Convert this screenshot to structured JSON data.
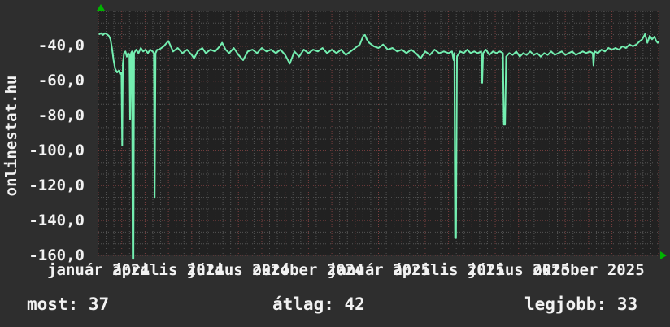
{
  "brand": "onlinestat.hu",
  "colors": {
    "page_bg": "#2e2e2e",
    "plot_bg": "#212121",
    "grid_minor": "#545454",
    "grid_major": "#7d4040",
    "line": "#73eeb0",
    "arrow": "#00b400",
    "text": "#f2f2f2"
  },
  "stats": {
    "most": {
      "label": "most:",
      "value": "37"
    },
    "atlag": {
      "label": "átlag:",
      "value": "42"
    },
    "legjobb": {
      "label": "legjobb:",
      "value": "33"
    }
  },
  "chart_data": {
    "type": "line",
    "title": "",
    "xlabel": "",
    "ylabel": "",
    "grid": "dotted, minor every 1/3 division, major (red) every division",
    "legend_position": "none",
    "x_axis_unit": "months since 2024-01",
    "xlim_months": [
      0,
      24
    ],
    "ylim": [
      -160,
      -20
    ],
    "y_tick_values": [
      -40,
      -60,
      -80,
      -100,
      -120,
      -140,
      -160
    ],
    "y_tick_labels": [
      "-40,0",
      "-60,0",
      "-80,0",
      "-100,0",
      "-120,0",
      "-140,0",
      "-160,0"
    ],
    "x_tick_month_index": [
      0,
      3,
      6,
      9,
      12,
      15,
      18,
      21
    ],
    "x_tick_labels": [
      "január 2024",
      "április 2024",
      "július 2024",
      "október 2024",
      "január 2025",
      "április 2025",
      "július 2025",
      "október 2025"
    ],
    "series": [
      {
        "name": "ping (negated)",
        "color": "#73eeb0",
        "points": [
          [
            0.05,
            -33
          ],
          [
            0.12,
            -32.5
          ],
          [
            0.2,
            -33.5
          ],
          [
            0.28,
            -32.5
          ],
          [
            0.36,
            -33
          ],
          [
            0.45,
            -34
          ],
          [
            0.52,
            -36
          ],
          [
            0.58,
            -41
          ],
          [
            0.65,
            -48
          ],
          [
            0.72,
            -53
          ],
          [
            0.8,
            -55
          ],
          [
            0.87,
            -54
          ],
          [
            0.93,
            -56
          ],
          [
            0.99,
            -55
          ],
          [
            1.02,
            -97
          ],
          [
            1.05,
            -50
          ],
          [
            1.1,
            -44
          ],
          [
            1.16,
            -43
          ],
          [
            1.22,
            -46
          ],
          [
            1.28,
            -44
          ],
          [
            1.33,
            -45
          ],
          [
            1.36,
            -82
          ],
          [
            1.4,
            -44
          ],
          [
            1.44,
            -43
          ],
          [
            1.47,
            -162
          ],
          [
            1.5,
            -162
          ],
          [
            1.53,
            -44
          ],
          [
            1.62,
            -42
          ],
          [
            1.72,
            -44
          ],
          [
            1.82,
            -41
          ],
          [
            1.92,
            -43
          ],
          [
            2.02,
            -42
          ],
          [
            2.12,
            -44
          ],
          [
            2.22,
            -42
          ],
          [
            2.32,
            -43
          ],
          [
            2.38,
            -44
          ],
          [
            2.41,
            -127
          ],
          [
            2.45,
            -44
          ],
          [
            2.52,
            -42
          ],
          [
            2.6,
            -42
          ],
          [
            2.8,
            -40
          ],
          [
            3.0,
            -37
          ],
          [
            3.2,
            -43
          ],
          [
            3.4,
            -41
          ],
          [
            3.6,
            -44
          ],
          [
            3.8,
            -42
          ],
          [
            4.0,
            -45
          ],
          [
            4.1,
            -47
          ],
          [
            4.25,
            -43
          ],
          [
            4.45,
            -41
          ],
          [
            4.6,
            -44
          ],
          [
            4.8,
            -42
          ],
          [
            5.0,
            -43
          ],
          [
            5.2,
            -40
          ],
          [
            5.3,
            -38
          ],
          [
            5.45,
            -42
          ],
          [
            5.6,
            -44
          ],
          [
            5.8,
            -41
          ],
          [
            6.0,
            -45
          ],
          [
            6.2,
            -48
          ],
          [
            6.4,
            -43
          ],
          [
            6.6,
            -42
          ],
          [
            6.8,
            -44
          ],
          [
            7.0,
            -41
          ],
          [
            7.2,
            -43
          ],
          [
            7.4,
            -42
          ],
          [
            7.6,
            -44
          ],
          [
            7.8,
            -42
          ],
          [
            8.0,
            -45
          ],
          [
            8.2,
            -50
          ],
          [
            8.4,
            -43
          ],
          [
            8.6,
            -46
          ],
          [
            8.8,
            -42
          ],
          [
            9.0,
            -44
          ],
          [
            9.2,
            -42
          ],
          [
            9.4,
            -43
          ],
          [
            9.6,
            -41
          ],
          [
            9.8,
            -44
          ],
          [
            10.0,
            -42
          ],
          [
            10.2,
            -44
          ],
          [
            10.4,
            -42
          ],
          [
            10.6,
            -45
          ],
          [
            10.8,
            -43
          ],
          [
            11.0,
            -41
          ],
          [
            11.2,
            -39
          ],
          [
            11.35,
            -34
          ],
          [
            11.42,
            -33.5
          ],
          [
            11.5,
            -36
          ],
          [
            11.6,
            -38
          ],
          [
            11.8,
            -40
          ],
          [
            12.0,
            -41
          ],
          [
            12.2,
            -39
          ],
          [
            12.4,
            -42
          ],
          [
            12.6,
            -41
          ],
          [
            12.8,
            -43
          ],
          [
            13.0,
            -42
          ],
          [
            13.2,
            -44
          ],
          [
            13.4,
            -42
          ],
          [
            13.6,
            -44
          ],
          [
            13.8,
            -47
          ],
          [
            14.0,
            -43
          ],
          [
            14.2,
            -45
          ],
          [
            14.4,
            -42
          ],
          [
            14.6,
            -44
          ],
          [
            14.8,
            -43
          ],
          [
            15.0,
            -44
          ],
          [
            15.15,
            -43
          ],
          [
            15.22,
            -48
          ],
          [
            15.25,
            -44
          ],
          [
            15.28,
            -150
          ],
          [
            15.32,
            -150
          ],
          [
            15.36,
            -46
          ],
          [
            15.5,
            -43
          ],
          [
            15.65,
            -44
          ],
          [
            15.8,
            -42
          ],
          [
            15.95,
            -44
          ],
          [
            16.1,
            -43
          ],
          [
            16.25,
            -44
          ],
          [
            16.4,
            -43
          ],
          [
            16.44,
            -61
          ],
          [
            16.48,
            -44
          ],
          [
            16.6,
            -42
          ],
          [
            16.75,
            -45
          ],
          [
            16.9,
            -43
          ],
          [
            17.05,
            -44
          ],
          [
            17.2,
            -43
          ],
          [
            17.33,
            -44
          ],
          [
            17.37,
            -85
          ],
          [
            17.42,
            -85
          ],
          [
            17.47,
            -46
          ],
          [
            17.6,
            -44
          ],
          [
            17.75,
            -45
          ],
          [
            17.9,
            -43
          ],
          [
            18.05,
            -46
          ],
          [
            18.2,
            -44
          ],
          [
            18.35,
            -45
          ],
          [
            18.5,
            -43
          ],
          [
            18.65,
            -45
          ],
          [
            18.8,
            -44
          ],
          [
            18.95,
            -46
          ],
          [
            19.1,
            -44
          ],
          [
            19.25,
            -45
          ],
          [
            19.4,
            -43
          ],
          [
            19.55,
            -45
          ],
          [
            19.7,
            -44
          ],
          [
            19.85,
            -43
          ],
          [
            20.0,
            -45
          ],
          [
            20.15,
            -44
          ],
          [
            20.3,
            -43
          ],
          [
            20.45,
            -45
          ],
          [
            20.6,
            -44
          ],
          [
            20.75,
            -43
          ],
          [
            20.9,
            -44
          ],
          [
            21.05,
            -43
          ],
          [
            21.18,
            -44
          ],
          [
            21.21,
            -51
          ],
          [
            21.25,
            -43
          ],
          [
            21.4,
            -44
          ],
          [
            21.55,
            -42
          ],
          [
            21.7,
            -43
          ],
          [
            21.85,
            -41
          ],
          [
            22.0,
            -42
          ],
          [
            22.15,
            -41
          ],
          [
            22.3,
            -42
          ],
          [
            22.45,
            -40
          ],
          [
            22.6,
            -41
          ],
          [
            22.75,
            -39
          ],
          [
            22.9,
            -40
          ],
          [
            23.05,
            -39
          ],
          [
            23.2,
            -37
          ],
          [
            23.3,
            -36
          ],
          [
            23.42,
            -33
          ],
          [
            23.52,
            -38
          ],
          [
            23.62,
            -34
          ],
          [
            23.72,
            -36
          ],
          [
            23.82,
            -34.5
          ],
          [
            23.9,
            -37
          ],
          [
            23.96,
            -38
          ],
          [
            24.0,
            -37.5
          ]
        ]
      }
    ]
  }
}
